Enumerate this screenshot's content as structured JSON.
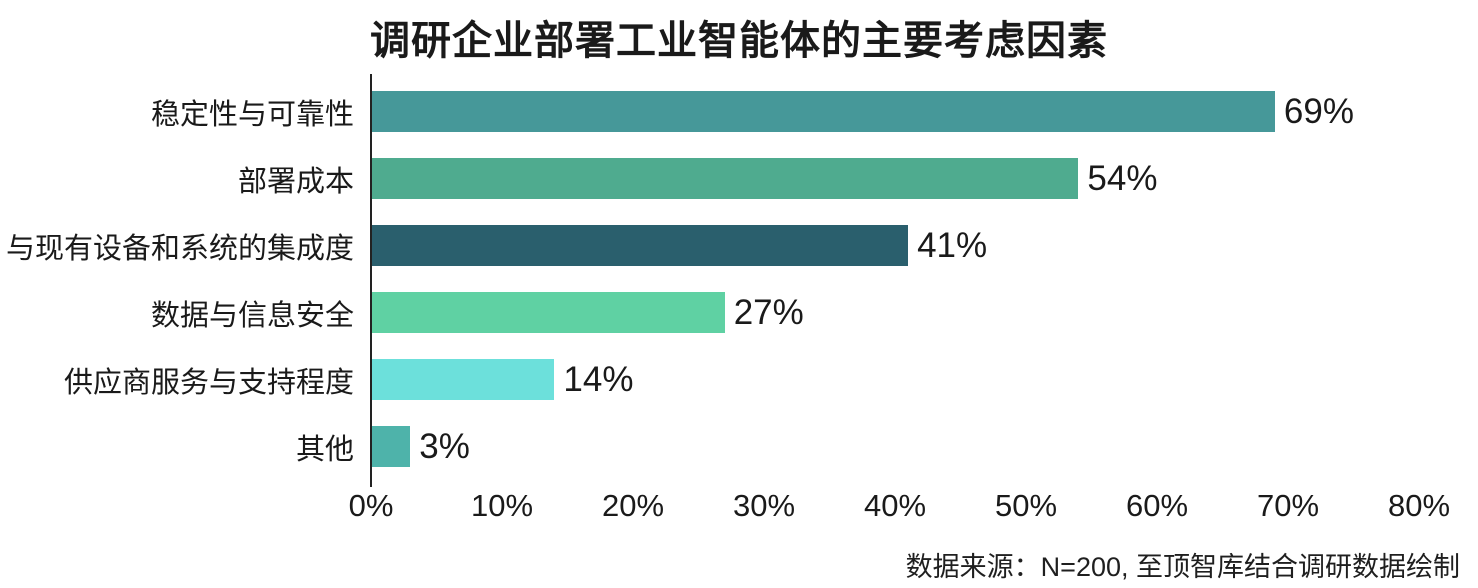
{
  "chart_data": {
    "type": "bar",
    "orientation": "horizontal",
    "title": "调研企业部署工业智能体的主要考虑因素",
    "categories": [
      "稳定性与可靠性",
      "部署成本",
      "与现有设备和系统的集成度",
      "数据与信息安全",
      "供应商服务与支持程度",
      "其他"
    ],
    "values": [
      69,
      54,
      41,
      27,
      14,
      3
    ],
    "value_labels": [
      "69%",
      "54%",
      "41%",
      "27%",
      "14%",
      "3%"
    ],
    "bar_colors": [
      "#469899",
      "#4fab8f",
      "#2a5f6d",
      "#5fd1a3",
      "#6ce0db",
      "#4eb3aa"
    ],
    "xlim": [
      0,
      80
    ],
    "x_ticks": [
      0,
      10,
      20,
      30,
      40,
      50,
      60,
      70,
      80
    ],
    "x_tick_labels": [
      "0%",
      "10%",
      "20%",
      "30%",
      "40%",
      "50%",
      "60%",
      "70%",
      "80%"
    ],
    "xlabel": "",
    "ylabel": "",
    "grid": false,
    "legend": false,
    "axis_color": "#222222",
    "text_color": "#1a1a1a",
    "source_note": "数据来源：N=200, 至顶智库结合调研数据绘制"
  }
}
